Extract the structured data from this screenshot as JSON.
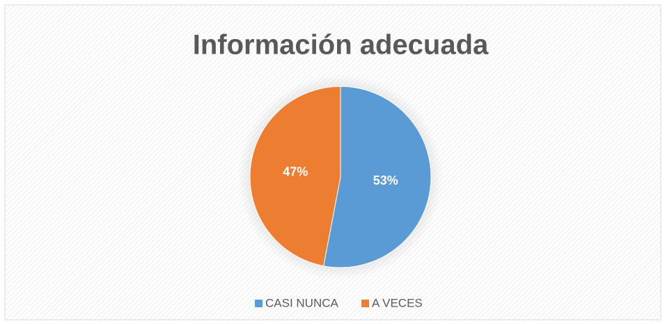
{
  "chart_data": {
    "type": "pie",
    "title": "Información adecuada",
    "categories": [
      "CASI NUNCA",
      "A VECES"
    ],
    "values": [
      53,
      47
    ],
    "value_labels": [
      "53%",
      "47%"
    ],
    "colors": [
      "#5b9bd5",
      "#ed7d31"
    ],
    "legend": "bottom"
  }
}
